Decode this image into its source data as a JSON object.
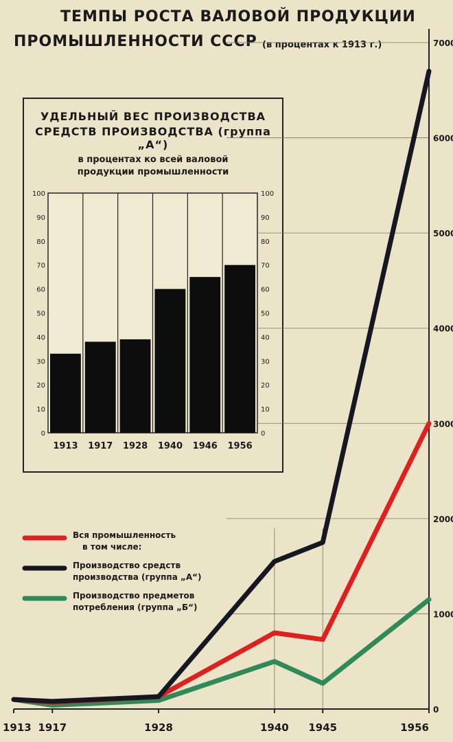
{
  "title_line1": "ТЕМПЫ РОСТА ВАЛОВОЙ ПРОДУКЦИИ",
  "title_line2": "ПРОМЫШЛЕННОСТИ СССР",
  "subtitle": "(в процентах к 1913 г.)",
  "colors": {
    "background": "#ece4c8",
    "all_industry": "#e01f1f",
    "group_a": "#151820",
    "group_b": "#2e8a57",
    "bar": "#0d0d0d"
  },
  "legend": [
    {
      "line1": "Вся промышленность",
      "line2": "в том числе:",
      "color": "#e01f1f"
    },
    {
      "line1": "Производство средств",
      "line2": "производства (группа „А“)",
      "color": "#151820"
    },
    {
      "line1": "Производство предметов",
      "line2": "потребления (группа „Б“)",
      "color": "#2e8a57"
    }
  ],
  "chart_data": [
    {
      "type": "line",
      "x": [
        1913,
        1917,
        1928,
        1940,
        1945,
        1956
      ],
      "xticks": [
        "1913",
        "1917",
        "1928",
        "1940",
        "1945",
        "1956"
      ],
      "ylim": [
        0,
        7000
      ],
      "yticks": [
        "0",
        "1000",
        "2000",
        "3000",
        "4000",
        "5000",
        "6000",
        "7000"
      ],
      "series": [
        {
          "name": "Вся промышленность",
          "values": [
            100,
            70,
            130,
            800,
            730,
            3000
          ]
        },
        {
          "name": "Производство средств производства (группа „А“)",
          "values": [
            100,
            80,
            130,
            1550,
            1750,
            6700
          ]
        },
        {
          "name": "Производство предметов потребления (группа „Б“)",
          "values": [
            100,
            40,
            90,
            500,
            270,
            1150
          ]
        }
      ]
    },
    {
      "type": "bar",
      "title_line1": "УДЕЛЬНЫЙ ВЕС ПРОИЗВОДСТВА",
      "title_line2": "СРЕДСТВ ПРОИЗВОДСТВА (группа „А“)",
      "subtitle_line1": "в процентах ко всей валовой",
      "subtitle_line2": "продукции промышленности",
      "categories": [
        "1913",
        "1917",
        "1928",
        "1940",
        "1946",
        "1956"
      ],
      "values": [
        33,
        38,
        39,
        60,
        65,
        70
      ],
      "ylim": [
        0,
        100
      ],
      "yticks": [
        "0",
        "10",
        "20",
        "30",
        "40",
        "50",
        "60",
        "70",
        "80",
        "90",
        "100"
      ]
    }
  ]
}
